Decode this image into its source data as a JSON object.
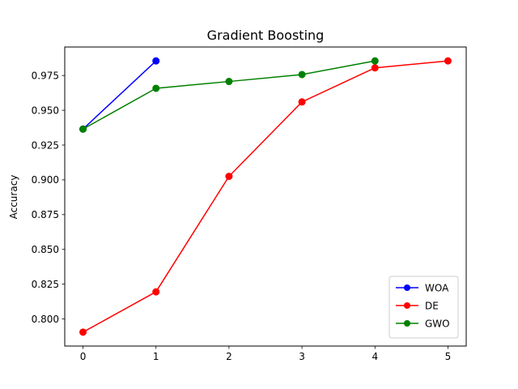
{
  "chart_data": {
    "type": "line",
    "title": "Gradient Boosting",
    "xlabel": "",
    "ylabel": "Accuracy",
    "xlim": [
      -0.25,
      5.25
    ],
    "ylim": [
      0.7805,
      0.9955
    ],
    "xticks": [
      0,
      1,
      2,
      3,
      4,
      5
    ],
    "yticks": [
      0.8,
      0.825,
      0.85,
      0.875,
      0.9,
      0.925,
      0.95,
      0.975
    ],
    "ytick_labels": [
      "0.800",
      "0.825",
      "0.850",
      "0.875",
      "0.900",
      "0.925",
      "0.950",
      "0.975"
    ],
    "grid": false,
    "legend_position": "bottom-right",
    "series": [
      {
        "name": "WOA",
        "color": "#0000ff",
        "x": [
          0,
          1
        ],
        "y": [
          0.9365,
          0.9855
        ]
      },
      {
        "name": "DE",
        "color": "#ff0000",
        "x": [
          0,
          1,
          2,
          3,
          4,
          5
        ],
        "y": [
          0.7905,
          0.8195,
          0.9025,
          0.956,
          0.9805,
          0.9855
        ]
      },
      {
        "name": "GWO",
        "color": "#008000",
        "x": [
          0,
          1,
          2,
          3,
          4
        ],
        "y": [
          0.9365,
          0.9658,
          0.9707,
          0.9757,
          0.9855
        ]
      }
    ]
  }
}
